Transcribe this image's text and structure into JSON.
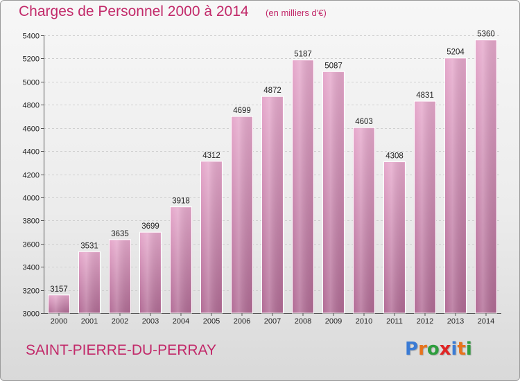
{
  "header": {
    "title": "Charges de Personnel 2000 à 2014",
    "subtitle": "(en milliers d'€)"
  },
  "footer": {
    "place_name": "SAINT-PIERRE-DU-PERRAY",
    "logo": {
      "text": "Proxiti",
      "letter_colors": [
        "#3a7bd5",
        "#e8731c",
        "#2e9e3e",
        "#e02424",
        "#3a7bd5",
        "#e8731c",
        "#2e9e3e"
      ]
    }
  },
  "colors": {
    "bar_light": "#e6a9cc",
    "bar_dark": "#b26d96",
    "title": "#c22a6a"
  },
  "chart_data": {
    "type": "bar",
    "title": "Charges de Personnel 2000 à 2014",
    "subtitle": "(en milliers d'€)",
    "xlabel": "",
    "ylabel": "",
    "categories": [
      "2000",
      "2001",
      "2002",
      "2003",
      "2004",
      "2005",
      "2006",
      "2007",
      "2008",
      "2009",
      "2010",
      "2011",
      "2012",
      "2013",
      "2014"
    ],
    "values": [
      3157,
      3531,
      3635,
      3699,
      3918,
      4312,
      4699,
      4872,
      5187,
      5087,
      4603,
      4308,
      4831,
      5204,
      5360
    ],
    "data_labels": [
      "3157",
      "3531",
      "3635",
      "3699",
      "3918",
      "4312",
      "4699",
      "4872",
      "5187",
      "5087",
      "4603",
      "4308",
      "4831",
      "5204",
      "5360"
    ],
    "ylim": [
      3000,
      5400
    ],
    "yticks": [
      3000,
      3200,
      3400,
      3600,
      3800,
      4000,
      4200,
      4400,
      4600,
      4800,
      5000,
      5200,
      5400
    ],
    "grid": true,
    "legend": "none"
  }
}
